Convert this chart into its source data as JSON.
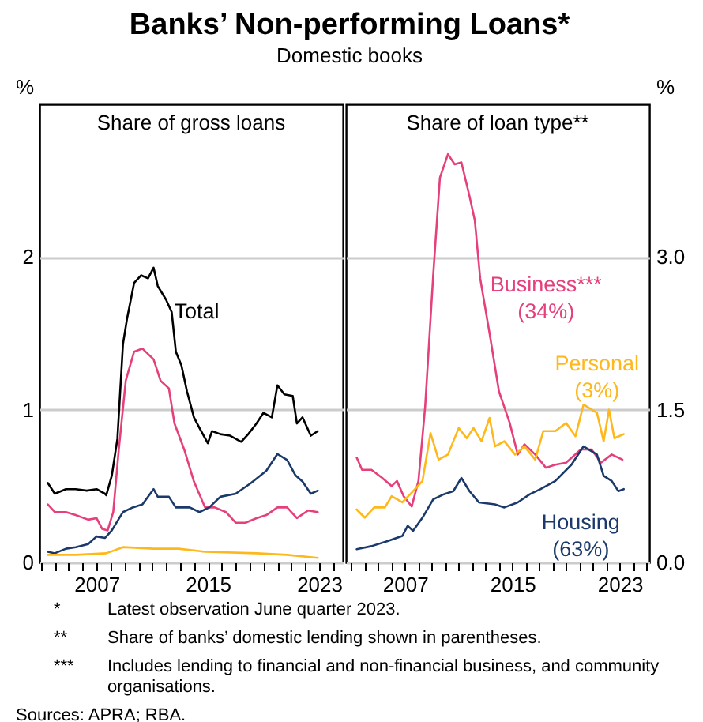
{
  "chart_data": [
    {
      "type": "line",
      "title": "Banks’ Non-performing Loans*",
      "subtitle": "Domestic books",
      "ylabel": "%",
      "annotations": [
        "Share of gross loans"
      ],
      "xlim": [
        2002.9,
        2024.7
      ],
      "ylim": [
        0,
        3
      ],
      "yticks": [
        0,
        1,
        2
      ],
      "xticks": [
        {
          "value": 2003,
          "label": null
        },
        {
          "value": 2004,
          "label": null
        },
        {
          "value": 2005,
          "label": null
        },
        {
          "value": 2006,
          "label": null
        },
        2007,
        {
          "value": 2008,
          "label": null
        },
        {
          "value": 2009,
          "label": null
        },
        {
          "value": 2010,
          "label": null
        },
        {
          "value": 2011,
          "label": null
        },
        {
          "value": 2012,
          "label": null
        },
        {
          "value": 2013,
          "label": null
        },
        {
          "value": 2014,
          "label": null
        },
        2015,
        {
          "value": 2016,
          "label": null
        },
        {
          "value": 2017,
          "label": null
        },
        {
          "value": 2018,
          "label": null
        },
        {
          "value": 2019,
          "label": null
        },
        {
          "value": 2020,
          "label": null
        },
        {
          "value": 2021,
          "label": null
        },
        {
          "value": 2022,
          "label": null
        },
        2023,
        {
          "value": 2024,
          "label": null
        }
      ],
      "grid": "y",
      "series": [
        {
          "name": "Total",
          "color": "#000000",
          "x": [
            2003.5,
            2004.0,
            2004.8,
            2005.5,
            2006.3,
            2007.0,
            2007.6,
            2007.7,
            2008.1,
            2008.5,
            2008.9,
            2009.2,
            2009.7,
            2010.2,
            2010.7,
            2011.1,
            2011.4,
            2012.0,
            2012.4,
            2012.7,
            2013.1,
            2013.5,
            2014.0,
            2014.4,
            2015.0,
            2015.3,
            2015.9,
            2016.6,
            2017.4,
            2017.9,
            2018.5,
            2019.0,
            2019.6,
            2020.0,
            2020.5,
            2021.1,
            2021.4,
            2021.8,
            2022.4,
            2022.9
          ],
          "values": [
            0.52,
            0.45,
            0.48,
            0.48,
            0.47,
            0.48,
            0.45,
            0.44,
            0.57,
            0.81,
            1.43,
            1.6,
            1.83,
            1.88,
            1.86,
            1.93,
            1.81,
            1.72,
            1.64,
            1.38,
            1.29,
            1.12,
            0.95,
            0.88,
            0.78,
            0.86,
            0.84,
            0.83,
            0.79,
            0.84,
            0.91,
            0.98,
            0.95,
            1.16,
            1.1,
            1.09,
            0.91,
            0.95,
            0.83,
            0.86
          ]
        },
        {
          "color": "#e5407c",
          "x": [
            2003.5,
            2004.0,
            2004.8,
            2005.5,
            2006.4,
            2007.0,
            2007.4,
            2007.8,
            2008.2,
            2008.6,
            2009.1,
            2009.7,
            2010.3,
            2011.1,
            2011.6,
            2012.2,
            2012.6,
            2013.3,
            2014.0,
            2014.8,
            2015.5,
            2016.3,
            2017.0,
            2017.7,
            2018.5,
            2019.2,
            2020.0,
            2020.7,
            2021.4,
            2022.2,
            2022.9
          ],
          "values": [
            0.38,
            0.33,
            0.33,
            0.31,
            0.28,
            0.29,
            0.22,
            0.21,
            0.33,
            0.74,
            1.19,
            1.38,
            1.4,
            1.33,
            1.19,
            1.14,
            0.91,
            0.74,
            0.53,
            0.36,
            0.36,
            0.33,
            0.26,
            0.26,
            0.29,
            0.31,
            0.36,
            0.36,
            0.29,
            0.34,
            0.33
          ]
        },
        {
          "color": "#1b3a6b",
          "x": [
            2003.5,
            2004.0,
            2004.8,
            2005.5,
            2006.4,
            2007.0,
            2007.6,
            2008.1,
            2008.9,
            2009.6,
            2010.3,
            2011.1,
            2011.4,
            2012.2,
            2012.7,
            2013.7,
            2014.4,
            2015.1,
            2015.9,
            2017.0,
            2018.1,
            2019.2,
            2020.0,
            2020.7,
            2021.3,
            2021.8,
            2022.4,
            2022.9
          ],
          "values": [
            0.07,
            0.06,
            0.09,
            0.1,
            0.12,
            0.17,
            0.16,
            0.21,
            0.33,
            0.36,
            0.38,
            0.48,
            0.43,
            0.43,
            0.36,
            0.36,
            0.33,
            0.36,
            0.43,
            0.45,
            0.52,
            0.6,
            0.71,
            0.67,
            0.57,
            0.53,
            0.45,
            0.47
          ]
        },
        {
          "color": "#ffb81c",
          "x": [
            2003.5,
            2005.5,
            2007.7,
            2008.9,
            2011.1,
            2012.9,
            2014.8,
            2018.5,
            2020.7,
            2022.9
          ],
          "values": [
            0.05,
            0.05,
            0.06,
            0.1,
            0.09,
            0.09,
            0.07,
            0.06,
            0.05,
            0.03
          ]
        }
      ]
    },
    {
      "type": "line",
      "ylabel": "%",
      "annotations": [
        "Share of loan type**",
        "*\tLatest observation June quarter 2023.",
        "**\tShare of banks’ domestic lending shown in parentheses.",
        "***\tIncludes lending to financial and non-financial business, and community organisations.",
        "Sources: APRA; RBA."
      ],
      "xlim": [
        2002.6,
        2025.2
      ],
      "ylim": [
        0,
        4.5
      ],
      "yticks": [
        {
          "value": 0,
          "label": "0.0"
        },
        {
          "value": 1.5,
          "label": "1.5"
        },
        {
          "value": 3,
          "label": "3.0"
        }
      ],
      "xticks": [
        {
          "value": 2003,
          "label": null
        },
        {
          "value": 2004,
          "label": null
        },
        {
          "value": 2005,
          "label": null
        },
        {
          "value": 2006,
          "label": null
        },
        2007,
        {
          "value": 2008,
          "label": null
        },
        {
          "value": 2009,
          "label": null
        },
        {
          "value": 2010,
          "label": null
        },
        {
          "value": 2011,
          "label": null
        },
        {
          "value": 2012,
          "label": null
        },
        {
          "value": 2013,
          "label": null
        },
        {
          "value": 2014,
          "label": null
        },
        2015,
        {
          "value": 2016,
          "label": null
        },
        {
          "value": 2017,
          "label": null
        },
        {
          "value": 2018,
          "label": null
        },
        {
          "value": 2019,
          "label": null
        },
        {
          "value": 2020,
          "label": null
        },
        {
          "value": 2021,
          "label": null
        },
        {
          "value": 2022,
          "label": null
        },
        2023,
        {
          "value": 2024,
          "label": null
        },
        {
          "value": 2025,
          "label": null
        }
      ],
      "grid": "y",
      "series": [
        {
          "name": "Business*** (34%)",
          "color": "#e5407c",
          "x": [
            2003.4,
            2003.8,
            2004.5,
            2005.3,
            2006.0,
            2006.4,
            2006.9,
            2007.5,
            2008.0,
            2008.5,
            2009.1,
            2009.6,
            2010.2,
            2010.7,
            2011.2,
            2011.8,
            2012.2,
            2012.6,
            2013.3,
            2014.0,
            2014.8,
            2015.4,
            2015.9,
            2016.7,
            2017.5,
            2018.2,
            2019.0,
            2020.1,
            2020.9,
            2021.6,
            2022.4,
            2023.2
          ],
          "values": [
            1.03,
            0.91,
            0.91,
            0.83,
            0.75,
            0.8,
            0.65,
            0.55,
            0.8,
            1.53,
            2.82,
            3.78,
            4.01,
            3.91,
            3.93,
            3.6,
            3.36,
            2.79,
            2.25,
            1.68,
            1.37,
            1.06,
            1.16,
            1.06,
            0.93,
            0.96,
            0.98,
            1.11,
            1.11,
            0.98,
            1.06,
            1.01
          ]
        },
        {
          "name": "Personal (3%)",
          "color": "#ffb81c",
          "x": [
            2003.4,
            2004.0,
            2004.7,
            2005.5,
            2006.0,
            2006.8,
            2007.6,
            2008.3,
            2008.9,
            2009.5,
            2010.2,
            2011.0,
            2011.6,
            2012.1,
            2012.7,
            2013.3,
            2013.7,
            2014.4,
            2015.2,
            2015.9,
            2016.7,
            2017.3,
            2018.2,
            2019.0,
            2019.7,
            2020.3,
            2021.3,
            2021.8,
            2022.2,
            2022.6,
            2023.3
          ],
          "values": [
            0.52,
            0.44,
            0.54,
            0.54,
            0.65,
            0.59,
            0.7,
            0.8,
            1.27,
            1.01,
            1.06,
            1.32,
            1.22,
            1.32,
            1.19,
            1.42,
            1.14,
            1.19,
            1.06,
            1.14,
            1.01,
            1.29,
            1.29,
            1.37,
            1.24,
            1.55,
            1.47,
            1.19,
            1.5,
            1.22,
            1.26
          ]
        },
        {
          "name": "Housing (63%)",
          "color": "#1b3a6b",
          "x": [
            2003.4,
            2004.5,
            2005.7,
            2006.8,
            2007.2,
            2007.6,
            2008.3,
            2009.1,
            2009.9,
            2010.6,
            2011.2,
            2011.8,
            2012.5,
            2013.7,
            2014.4,
            2015.4,
            2016.3,
            2017.1,
            2018.2,
            2019.4,
            2020.3,
            2021.3,
            2021.8,
            2022.4,
            2022.9,
            2023.3
          ],
          "values": [
            0.13,
            0.16,
            0.21,
            0.26,
            0.36,
            0.31,
            0.44,
            0.62,
            0.67,
            0.7,
            0.83,
            0.7,
            0.59,
            0.57,
            0.54,
            0.59,
            0.67,
            0.72,
            0.8,
            0.96,
            1.14,
            1.06,
            0.85,
            0.8,
            0.7,
            0.72
          ]
        }
      ]
    }
  ]
}
